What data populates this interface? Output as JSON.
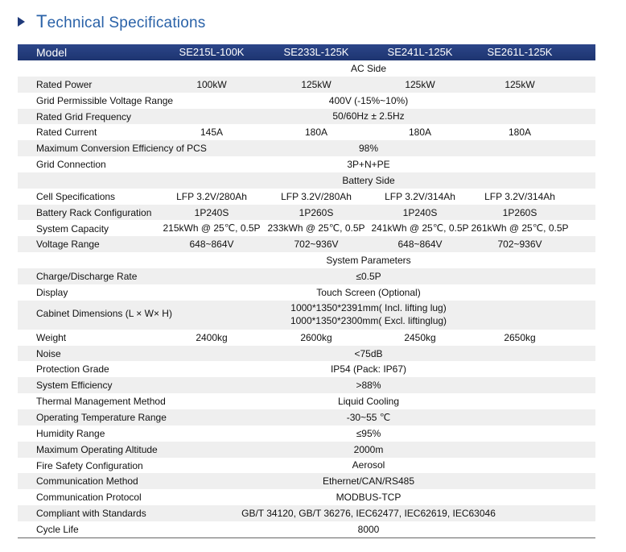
{
  "header": {
    "title": "Technical Specifications"
  },
  "table": {
    "columns": [
      "Model",
      "SE215L-100K",
      "SE233L-125K",
      "SE241L-125K",
      "SE261L-125K"
    ],
    "rows": [
      {
        "section": "AC Side"
      },
      {
        "label": "Rated Power",
        "values": [
          "100kW",
          "125kW",
          "125kW",
          "125kW"
        ]
      },
      {
        "label": "Grid Permissible Voltage Range",
        "value": "400V (-15%~10%)"
      },
      {
        "label": "Rated Grid Frequency",
        "value": "50/60Hz ± 2.5Hz"
      },
      {
        "label": "Rated Current",
        "values": [
          "145A",
          "180A",
          "180A",
          "180A"
        ]
      },
      {
        "label": "Maximum Conversion Efficiency of PCS",
        "value": "98%"
      },
      {
        "label": "Grid Connection",
        "value": "3P+N+PE"
      },
      {
        "section": "Battery Side"
      },
      {
        "label": "Cell Specifications",
        "values": [
          "LFP 3.2V/280Ah",
          "LFP 3.2V/280Ah",
          "LFP 3.2V/314Ah",
          "LFP 3.2V/314Ah"
        ]
      },
      {
        "label": "Battery Rack Configuration",
        "values": [
          "1P240S",
          "1P260S",
          "1P240S",
          "1P260S"
        ]
      },
      {
        "label": "System Capacity",
        "values": [
          "215kWh @ 25℃, 0.5P",
          "233kWh @ 25℃, 0.5P",
          "241kWh @ 25℃, 0.5P",
          "261kWh @ 25℃, 0.5P"
        ]
      },
      {
        "label": "Voltage Range",
        "values": [
          "648~864V",
          "702~936V",
          "648~864V",
          "702~936V"
        ]
      },
      {
        "section": "System Parameters"
      },
      {
        "label": "Charge/Discharge Rate",
        "value": "≤0.5P"
      },
      {
        "label": "Display",
        "value": "Touch Screen (Optional)"
      },
      {
        "label": "Cabinet Dimensions (L × W× H)",
        "lines": [
          "1000*1350*2391mm( Incl. lifting lug)",
          "1000*1350*2300mm( Excl. liftinglug)"
        ]
      },
      {
        "label": "Weight",
        "values": [
          "2400kg",
          "2600kg",
          "2450kg",
          "2650kg"
        ]
      },
      {
        "label": "Noise",
        "value": "<75dB"
      },
      {
        "label": "Protection Grade",
        "value": "IP54 (Pack: IP67)"
      },
      {
        "label": "System Efficiency",
        "value": ">88%"
      },
      {
        "label": "Thermal Management Method",
        "value": "Liquid Cooling"
      },
      {
        "label": "Operating Temperature Range",
        "value": "-30~55 ℃"
      },
      {
        "label": "Humidity Range",
        "value": "≤95%"
      },
      {
        "label": "Maximum Operating Altitude",
        "value": "2000m"
      },
      {
        "label": "Fire Safety Configuration",
        "value": "Aerosol"
      },
      {
        "label": "Communication Method",
        "value": "Ethernet/CAN/RS485"
      },
      {
        "label": "Communication Protocol",
        "value": "MODBUS-TCP"
      },
      {
        "label": "Compliant with Standards",
        "value": "GB/T 34120, GB/T 36276, IEC62477, IEC62619, IEC63046"
      },
      {
        "label": "Cycle Life",
        "value": "8000"
      }
    ]
  }
}
